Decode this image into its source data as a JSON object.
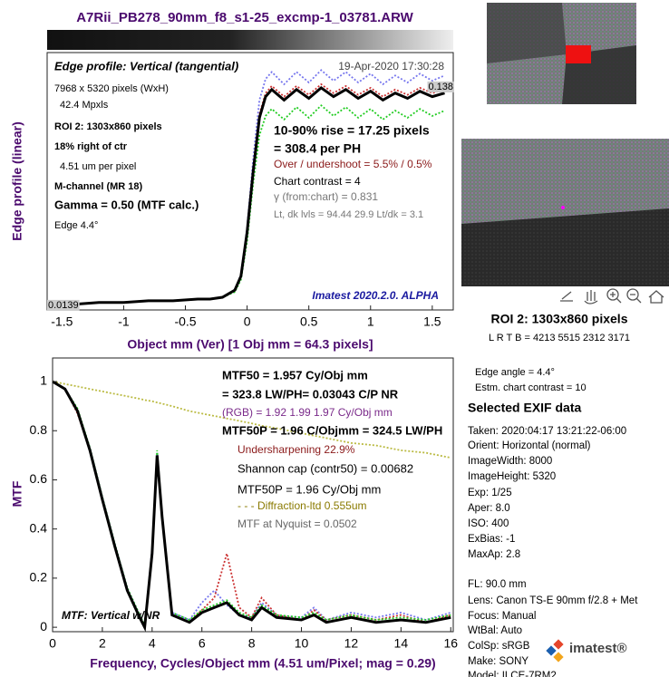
{
  "window_title": "A7Rii_PB278_90mm_f8_s1-25_excmp-1_03781.ARW",
  "chart_data": [
    {
      "type": "line",
      "xlabel": "Object mm (Ver)   [1 Obj mm = 64.3 pixels]",
      "ylabel": "Edge profile (linear)",
      "xlim": [
        -1.62,
        1.67
      ],
      "xticks": [
        -1.5,
        -1,
        -0.5,
        0,
        0.5,
        1,
        1.5
      ],
      "ylim": [
        0.0108,
        0.157
      ],
      "x": [
        -1.6,
        -1.4,
        -1.2,
        -1.0,
        -0.8,
        -0.6,
        -0.4,
        -0.3,
        -0.2,
        -0.1,
        -0.05,
        0,
        0.05,
        0.1,
        0.15,
        0.2,
        0.3,
        0.4,
        0.5,
        0.6,
        0.7,
        0.8,
        0.9,
        1.0,
        1.1,
        1.2,
        1.3,
        1.4,
        1.5,
        1.6
      ],
      "series": [
        {
          "color": "#7777ee",
          "style": "dotted",
          "values": [
            0.014,
            0.014,
            0.015,
            0.015,
            0.016,
            0.016,
            0.017,
            0.017,
            0.018,
            0.022,
            0.031,
            0.058,
            0.097,
            0.13,
            0.142,
            0.146,
            0.139,
            0.146,
            0.14,
            0.147,
            0.141,
            0.146,
            0.14,
            0.145,
            0.139,
            0.144,
            0.14,
            0.145,
            0.141,
            0.144
          ]
        },
        {
          "color": "#cc3333",
          "style": "dotted",
          "values": [
            0.014,
            0.014,
            0.015,
            0.015,
            0.016,
            0.016,
            0.017,
            0.017,
            0.018,
            0.022,
            0.03,
            0.056,
            0.092,
            0.122,
            0.134,
            0.138,
            0.132,
            0.138,
            0.133,
            0.139,
            0.134,
            0.138,
            0.133,
            0.137,
            0.132,
            0.136,
            0.133,
            0.137,
            0.134,
            0.136
          ]
        },
        {
          "color": "#22cc22",
          "style": "dotted",
          "values": [
            0.014,
            0.014,
            0.015,
            0.015,
            0.016,
            0.016,
            0.017,
            0.017,
            0.018,
            0.021,
            0.028,
            0.05,
            0.083,
            0.11,
            0.121,
            0.125,
            0.119,
            0.126,
            0.12,
            0.127,
            0.121,
            0.126,
            0.12,
            0.125,
            0.119,
            0.124,
            0.12,
            0.125,
            0.121,
            0.124
          ]
        },
        {
          "color": "#000000",
          "style": "solid",
          "values": [
            0.014,
            0.014,
            0.015,
            0.015,
            0.016,
            0.016,
            0.017,
            0.017,
            0.018,
            0.022,
            0.03,
            0.055,
            0.09,
            0.12,
            0.132,
            0.136,
            0.13,
            0.136,
            0.131,
            0.137,
            0.132,
            0.136,
            0.131,
            0.135,
            0.13,
            0.134,
            0.131,
            0.135,
            0.132,
            0.134
          ]
        }
      ],
      "annotations": [
        "Edge profile: Vertical (tangential)",
        "19-Apr-2020 17:30:28",
        "7968 x 5320 pixels (WxH)",
        "42.4 Mpxls",
        "ROI 2:  1303x860 pixels",
        "18% right of ctr",
        "4.51 um per pixel",
        "M-channel  (MR 18)",
        "Gamma = 0.50 (MTF calc.)",
        "Edge    4.4°",
        "10-90% rise = 17.25 pixels",
        "= 308.4 per PH",
        "Over / undershoot = 5.5% /  0.5%",
        "Chart contrast = 4",
        "γ (from:chart) = 0.831",
        "Lt, dk lvls = 94.44  29.9  Lt/dk = 3.1",
        "Imatest 2020.2.0. ALPHA",
        "0.138",
        "0.0139"
      ]
    },
    {
      "type": "line",
      "xlabel": "Frequency, Cycles/Object mm  (4.51 um/Pixel;  mag = 0.29)",
      "ylabel": "MTF",
      "xlim": [
        0,
        16.1
      ],
      "xticks": [
        0,
        2,
        4,
        6,
        8,
        10,
        12,
        14,
        16
      ],
      "ylim": [
        -0.018,
        1.096
      ],
      "yticks": [
        0,
        0.2,
        0.4,
        0.6,
        0.8,
        1
      ],
      "x": [
        0,
        0.5,
        1,
        1.5,
        2,
        2.5,
        3,
        3.5,
        3.7,
        4.0,
        4.2,
        4.4,
        4.8,
        5.5,
        6,
        6.5,
        7,
        7.5,
        8,
        8.4,
        9,
        10,
        10.5,
        11,
        12,
        13,
        14,
        15,
        16
      ],
      "series": [
        {
          "color": "#bbbb44",
          "style": "dotted",
          "values": [
            1,
            0.99,
            0.98,
            0.97,
            0.96,
            0.95,
            0.94,
            0.93,
            0.925,
            0.92,
            0.915,
            0.91,
            0.9,
            0.88,
            0.87,
            0.86,
            0.85,
            0.84,
            0.83,
            0.82,
            0.81,
            0.79,
            0.78,
            0.77,
            0.75,
            0.74,
            0.72,
            0.71,
            0.69
          ]
        },
        {
          "color": "#7777ee",
          "style": "dotted",
          "values": [
            1,
            0.97,
            0.88,
            0.73,
            0.53,
            0.34,
            0.16,
            0.05,
            0.01,
            0.32,
            0.71,
            0.46,
            0.06,
            0.03,
            0.1,
            0.15,
            0.09,
            0.05,
            0.04,
            0.1,
            0.05,
            0.04,
            0.08,
            0.03,
            0.06,
            0.04,
            0.06,
            0.03,
            0.06
          ]
        },
        {
          "color": "#cc3333",
          "style": "dotted",
          "values": [
            1,
            0.97,
            0.87,
            0.72,
            0.52,
            0.33,
            0.15,
            0.04,
            0.01,
            0.3,
            0.7,
            0.45,
            0.05,
            0.02,
            0.07,
            0.12,
            0.3,
            0.08,
            0.04,
            0.12,
            0.05,
            0.03,
            0.07,
            0.03,
            0.05,
            0.03,
            0.05,
            0.02,
            0.05
          ]
        },
        {
          "color": "#22cc22",
          "style": "dotted",
          "values": [
            1,
            0.97,
            0.89,
            0.73,
            0.53,
            0.34,
            0.16,
            0.05,
            0.01,
            0.31,
            0.72,
            0.46,
            0.06,
            0.03,
            0.07,
            0.09,
            0.11,
            0.06,
            0.04,
            0.09,
            0.05,
            0.04,
            0.06,
            0.03,
            0.05,
            0.03,
            0.04,
            0.03,
            0.05
          ]
        },
        {
          "color": "#000000",
          "style": "solid",
          "values": [
            1,
            0.97,
            0.88,
            0.72,
            0.52,
            0.33,
            0.15,
            0.04,
            0.0,
            0.3,
            0.7,
            0.45,
            0.05,
            0.02,
            0.06,
            0.08,
            0.1,
            0.05,
            0.03,
            0.08,
            0.04,
            0.03,
            0.05,
            0.02,
            0.04,
            0.02,
            0.03,
            0.02,
            0.04
          ]
        }
      ],
      "annotations": [
        "MTF50 = 1.957 Cy/Obj mm",
        "= 323.8 LW/PH= 0.03043 C/P  NR",
        "(RGB) = 1.92  1.99  1.97 Cy/Obj mm",
        "MTF50P = 1.96 C/Objmm = 324.5 LW/PH",
        "Undersharpening 22.9%",
        "Shannon cap (contr50) = 0.00682",
        "MTF50P = 1.96 Cy/Obj mm",
        "- - - Diffraction-ltd  0.555um",
        "MTF at Nyquist = 0.0502",
        "MTF: Vertical w/NR"
      ]
    }
  ],
  "side_panel": {
    "roi_title": "ROI 2:  1303x860 pixels",
    "roi_coords": "L R  T B = 4213 5515  2312 3171",
    "edge_angle": "Edge angle = 4.4°",
    "chart_contrast": "Estm. chart contrast = 10",
    "exif_title": "Selected EXIF data",
    "exif": [
      "Taken: 2020:04:17 13:21:22-06:00",
      "Orient: Horizontal (normal)",
      "ImageWidth:  8000",
      "ImageHeight:  5320",
      "Exp:    1/25",
      "Aper:   8.0",
      "ISO:    400",
      "ExBias:   -1",
      "MaxAp:   2.8",
      "FL:     90.0 mm",
      "Lens:    Canon TS-E 90mm f/2.8 + Met",
      "Focus:   Manual",
      "WtBal:   Auto",
      "ColSp:   sRGB",
      "Make:   SONY",
      "Model:  ILCE-7RM2"
    ],
    "logo": "imatest®"
  }
}
